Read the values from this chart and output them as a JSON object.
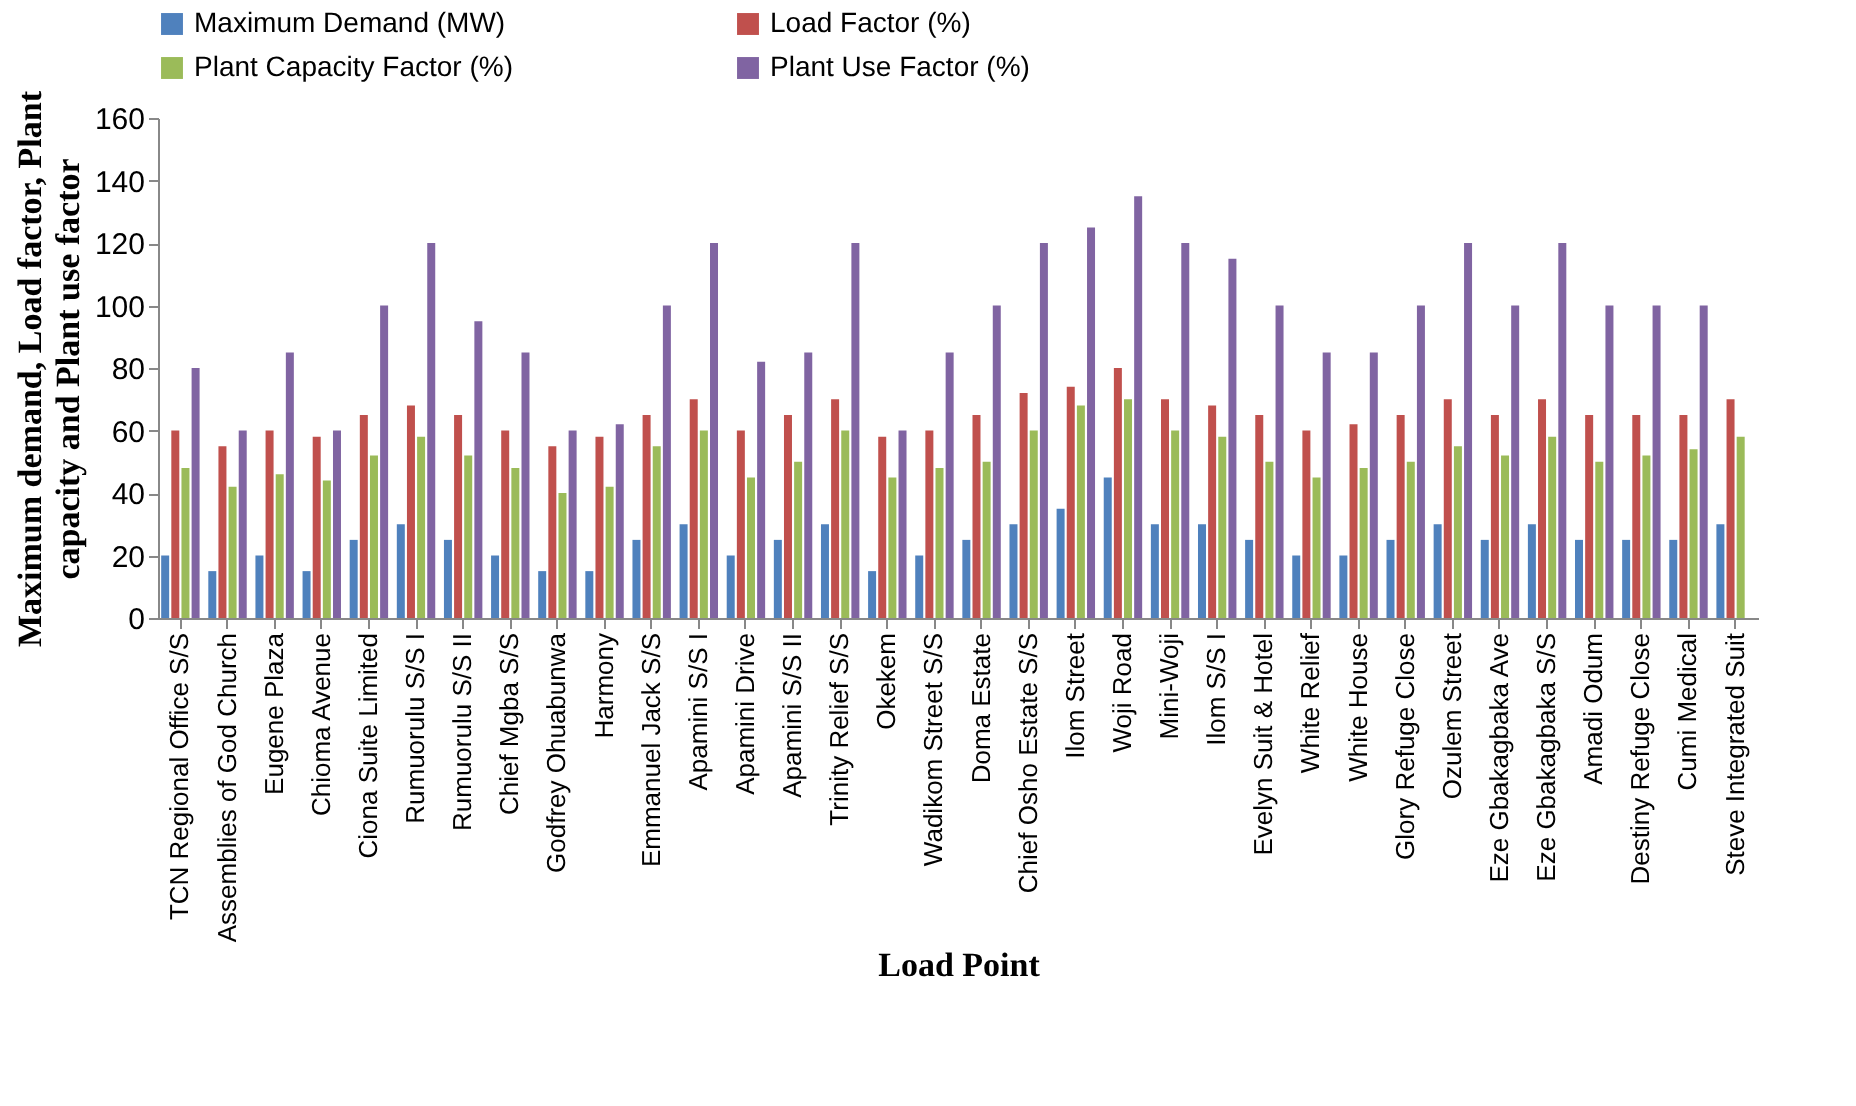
{
  "chart_data": {
    "type": "bar",
    "xlabel": "Load Point",
    "ylabel": "Maximum demand, Load factor, Plant capacity and Plant use factor",
    "categories": [
      "TCN Regional  Office S/S",
      "Assemblies of God Church",
      "Eugene Plaza",
      "Chioma  Avenue",
      "Ciona  Suite Limited",
      "Rumuorulu  S/S I",
      "Rumuorulu   S/S II",
      "Chief Mgba  S/S",
      "Godfrey  Ohuabunwa",
      "Harmony",
      "Emmanuel Jack  S/S",
      "Apamini S/S I",
      "Apamini  Drive",
      "Apamini S/S II",
      "Trinity Relief S/S",
      "Okekem",
      "Wadikom Street S/S",
      "Doma Estate",
      "Chief Osho Estate S/S",
      "Ilom Street",
      "Woji  Road",
      "Mini-Woji",
      "Ilom S/S I",
      "Evelyn Suit & Hotel",
      "White Relief",
      "White House",
      "Glory Refuge Close",
      "Ozulem Street",
      "Eze Gbakagbaka Ave",
      "Eze Gbakagbaka S/S",
      "Amadi Odum",
      "Destiny Refuge Close",
      "Cumi Medical",
      "Steve Integrated Suit"
    ],
    "series": [
      {
        "name": "Maximum Demand (MW)",
        "color": "#4f81bd",
        "values": [
          20,
          15,
          20,
          15,
          25,
          30,
          25,
          20,
          15,
          15,
          25,
          30,
          20,
          25,
          30,
          15,
          20,
          25,
          30,
          35,
          45,
          30,
          30,
          25,
          20,
          20,
          25,
          30,
          25,
          30,
          25,
          25,
          25,
          30
        ]
      },
      {
        "name": "Load  Factor (%)",
        "color": "#c0504d",
        "values": [
          60,
          55,
          60,
          58,
          65,
          68,
          65,
          60,
          55,
          58,
          65,
          70,
          60,
          65,
          70,
          58,
          60,
          65,
          72,
          74,
          80,
          70,
          68,
          65,
          60,
          62,
          65,
          70,
          65,
          70,
          65,
          65,
          65,
          70
        ]
      },
      {
        "name": "Plant Capacity Factor (%)",
        "color": "#9bbb59",
        "values": [
          48,
          42,
          46,
          44,
          52,
          58,
          52,
          48,
          40,
          42,
          55,
          60,
          45,
          50,
          60,
          45,
          48,
          50,
          60,
          68,
          70,
          60,
          58,
          50,
          45,
          48,
          50,
          55,
          52,
          58,
          50,
          52,
          54,
          58
        ]
      },
      {
        "name": "Plant Use  Factor (%)",
        "color": "#8064a2",
        "values": [
          80,
          60,
          85,
          60,
          100,
          120,
          95,
          85,
          60,
          62,
          100,
          120,
          82,
          85,
          120,
          60,
          85,
          100,
          120,
          125,
          135,
          120,
          115,
          100,
          85,
          85,
          100,
          120,
          100,
          120,
          100,
          100,
          100,
          null
        ]
      }
    ],
    "ylim": [
      0,
      160
    ],
    "yticks": [
      0,
      20,
      40,
      60,
      80,
      100,
      120,
      140,
      160
    ],
    "legend": "top",
    "grid": false
  }
}
